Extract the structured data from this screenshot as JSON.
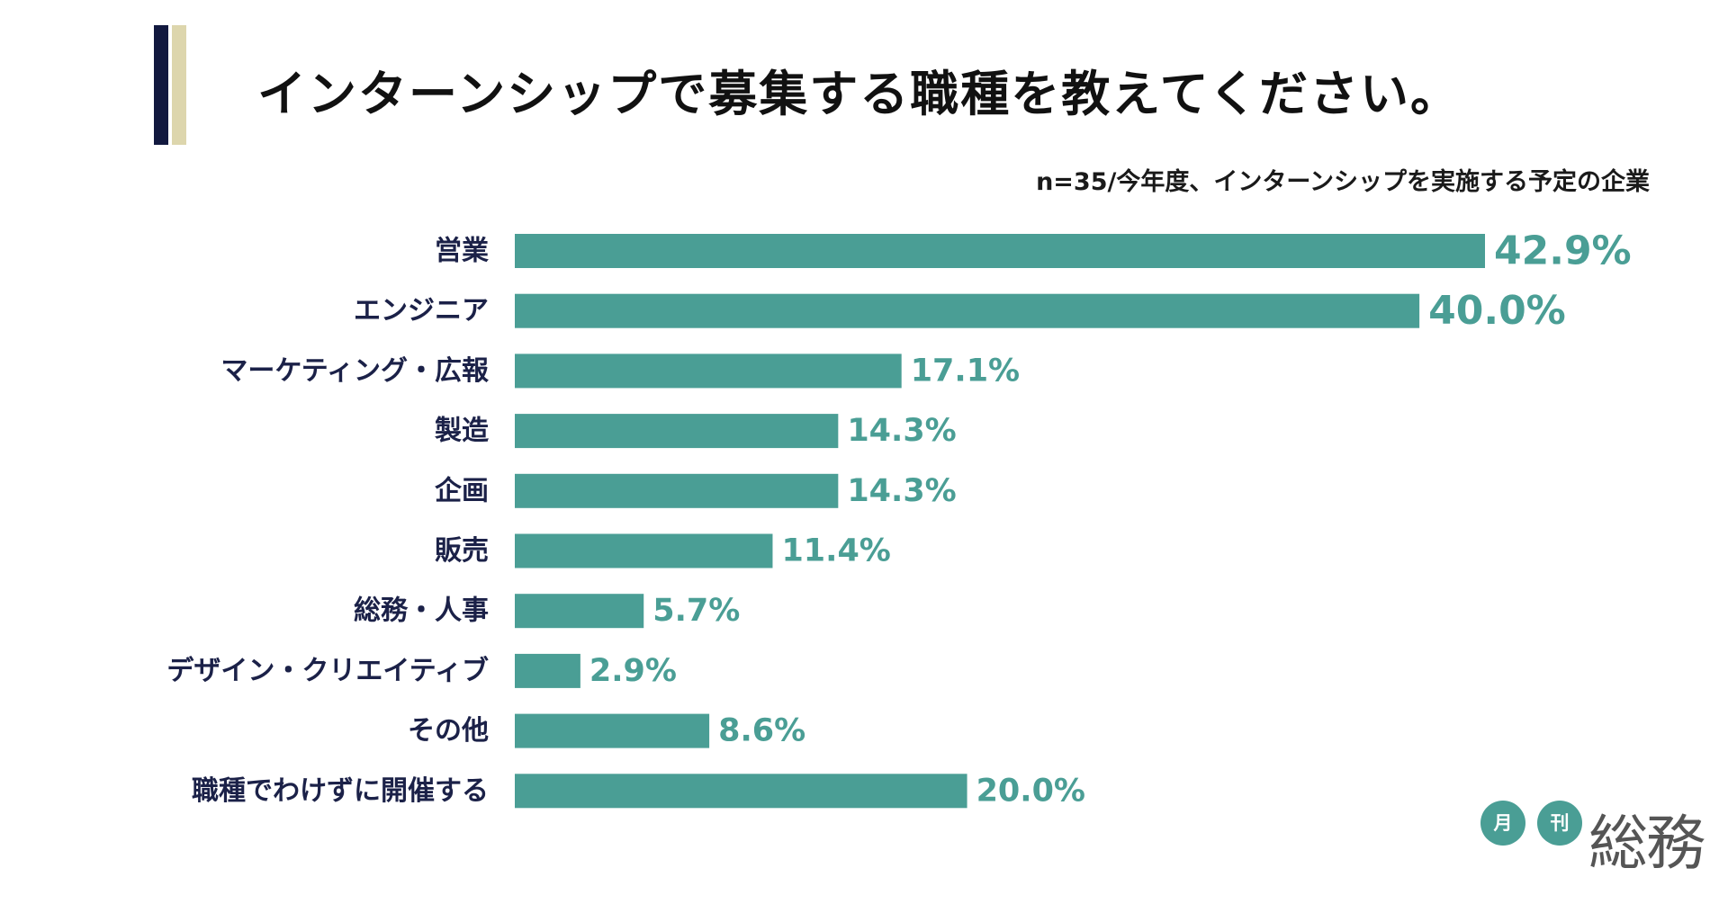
{
  "header": {
    "title": "インターンシップで募集する職種を教えてください。",
    "note": "n=35/今年度、インターンシップを実施する予定の企業"
  },
  "colors": {
    "bar": "#4a9e95",
    "label": "#1b2148",
    "accent_navy": "#12193f",
    "accent_gold": "#ddd6ad"
  },
  "chart_data": {
    "type": "bar",
    "orientation": "horizontal",
    "title": "インターンシップで募集する職種を教えてください。",
    "xlabel": "",
    "ylabel": "",
    "xlim": [
      0,
      42.9
    ],
    "grid": false,
    "categories": [
      "営業",
      "エンジニア",
      "マーケティング・広報",
      "製造",
      "企画",
      "販売",
      "総務・人事",
      "デザイン・クリエイティブ",
      "その他",
      "職種でわけずに開催する"
    ],
    "values": [
      42.9,
      40.0,
      17.1,
      14.3,
      14.3,
      11.4,
      5.7,
      2.9,
      8.6,
      20.0
    ],
    "value_labels": [
      "42.9%",
      "40.0%",
      "17.1%",
      "14.3%",
      "14.3%",
      "11.4%",
      "5.7%",
      "2.9%",
      "8.6%",
      "20.0%"
    ]
  },
  "logo": {
    "badge1": "月",
    "badge2": "刊",
    "name": "総務"
  }
}
